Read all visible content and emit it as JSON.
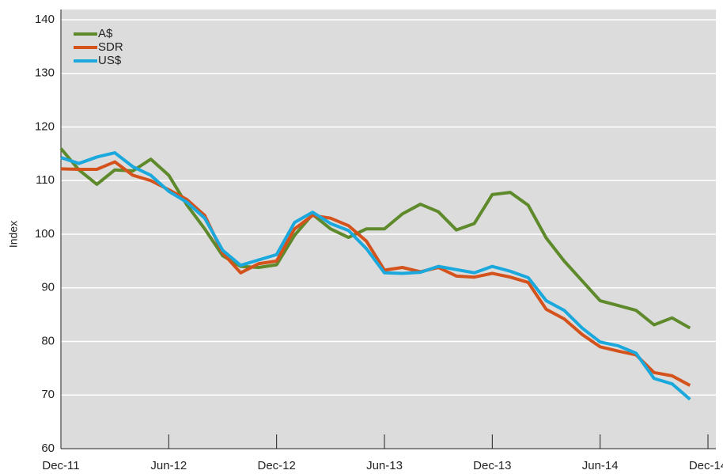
{
  "chart_data": {
    "type": "line",
    "y_label": "Index",
    "x": [
      "2011-12",
      "2012-01",
      "2012-02",
      "2012-03",
      "2012-04",
      "2012-05",
      "2012-06",
      "2012-07",
      "2012-08",
      "2012-09",
      "2012-10",
      "2012-11",
      "2012-12",
      "2013-01",
      "2013-02",
      "2013-03",
      "2013-04",
      "2013-05",
      "2013-06",
      "2013-07",
      "2013-08",
      "2013-09",
      "2013-10",
      "2013-11",
      "2013-12",
      "2014-01",
      "2014-02",
      "2014-03",
      "2014-04",
      "2014-05",
      "2014-06",
      "2014-07",
      "2014-08",
      "2014-09",
      "2014-10",
      "2014-11"
    ],
    "series": [
      {
        "name": "A$",
        "color": "#5e8a2b",
        "values": [
          116,
          112,
          109.3,
          112,
          111.8,
          114,
          111,
          105.5,
          101,
          96,
          94,
          93.8,
          94.3,
          99.8,
          103.7,
          101,
          99.4,
          101,
          101,
          103.8,
          105.6,
          104.2,
          100.8,
          102,
          107.4,
          107.8,
          105.4,
          99.3,
          95,
          91.3,
          87.6,
          86.7,
          85.8,
          83.1,
          84.4,
          82.5
        ]
      },
      {
        "name": "SDR",
        "color": "#d4531c",
        "values": [
          112.2,
          112.1,
          112.1,
          113.5,
          111,
          110,
          108.3,
          106.5,
          103.5,
          96.5,
          92.8,
          94.5,
          95,
          101,
          103.5,
          103,
          101.6,
          98.7,
          93.3,
          93.8,
          93,
          93.8,
          92.2,
          92,
          92.7,
          92,
          91,
          86,
          84.2,
          81.3,
          79,
          78.2,
          77.5,
          74.2,
          73.6,
          71.8
        ]
      },
      {
        "name": "US$",
        "color": "#1ba8dc",
        "values": [
          114.3,
          113.2,
          114.4,
          115.2,
          112.6,
          111,
          108,
          106,
          103,
          97,
          94.2,
          95.2,
          96.2,
          102.2,
          104.1,
          102,
          100.7,
          97.3,
          92.8,
          92.7,
          92.9,
          94,
          93.4,
          92.8,
          94,
          93.1,
          91.9,
          87.6,
          85.8,
          82.5,
          79.9,
          79.2,
          77.8,
          73.1,
          72.1,
          69.2
        ]
      }
    ],
    "xlim": [
      "2011-12",
      "2014-12"
    ],
    "xticks": [
      {
        "value": "2011-12",
        "label": "Dec-11"
      },
      {
        "value": "2012-06",
        "label": "Jun-12"
      },
      {
        "value": "2012-12",
        "label": "Dec-12"
      },
      {
        "value": "2013-06",
        "label": "Jun-13"
      },
      {
        "value": "2013-12",
        "label": "Dec-13"
      },
      {
        "value": "2014-06",
        "label": "Jun-14"
      },
      {
        "value": "2014-12",
        "label": "Dec-14"
      }
    ],
    "ylim": [
      60,
      140
    ],
    "yticks": [
      60,
      70,
      80,
      90,
      100,
      110,
      120,
      130,
      140
    ],
    "grid": true,
    "legend": "top-left"
  }
}
